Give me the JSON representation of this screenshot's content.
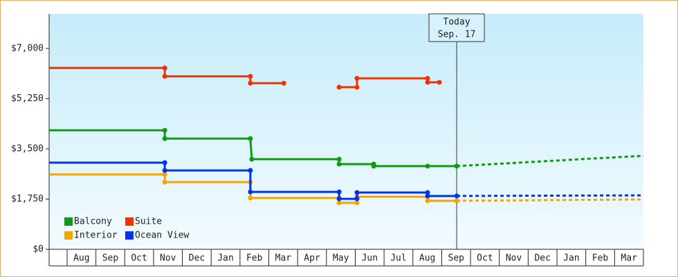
{
  "chart_data": {
    "type": "line",
    "ylim": [
      0,
      8207
    ],
    "yticks": [
      {
        "value": 0,
        "label": "$0"
      },
      {
        "value": 1750,
        "label": "$1,750"
      },
      {
        "value": 3500,
        "label": "$3,500"
      },
      {
        "value": 5250,
        "label": "$5,250"
      },
      {
        "value": 7000,
        "label": "$7,000"
      }
    ],
    "xlim": [
      -0.624,
      20
    ],
    "xticks": [
      0,
      1,
      2,
      3,
      4,
      5,
      6,
      7,
      8,
      9,
      10,
      11,
      12,
      13,
      14,
      15,
      16,
      17,
      18,
      19,
      20
    ],
    "categories": [
      "Aug",
      "Sep",
      "Oct",
      "Nov",
      "Dec",
      "Jan",
      "Feb",
      "Mar",
      "Apr",
      "May",
      "Jun",
      "Jul",
      "Aug",
      "Sep",
      "Oct",
      "Nov",
      "Dec",
      "Jan",
      "Feb",
      "Mar"
    ],
    "today": {
      "x": 13.52,
      "label": "Today",
      "date": "Sep. 17"
    },
    "legend": "bottom-left",
    "series": [
      {
        "name": "Balcony",
        "color": "#119911",
        "x": [
          -0.62,
          3.39,
          3.39,
          6.36,
          6.41,
          9.44,
          9.44,
          10.64,
          10.64,
          12.51,
          13.52
        ],
        "values": [
          4150,
          4150,
          3860,
          3860,
          3140,
          3140,
          2970,
          2970,
          2900,
          2900,
          2900
        ],
        "forecast": {
          "x": [
            13.52,
            20
          ],
          "values": [
            2900,
            3260
          ]
        }
      },
      {
        "name": "Suite",
        "color": "#ee3300",
        "x": [
          -0.62,
          3.39,
          3.39,
          6.36,
          6.36,
          7.52,
          8.5,
          9.44,
          10.06,
          10.06,
          12.51,
          12.51,
          12.92
        ],
        "values": [
          6320,
          6320,
          6030,
          6030,
          5790,
          5790,
          null,
          5650,
          5650,
          5960,
          5960,
          5820,
          5820
        ]
      },
      {
        "name": "Interior",
        "color": "#f5a300",
        "x": [
          -0.62,
          3.39,
          3.39,
          6.36,
          6.36,
          9.44,
          9.44,
          10.06,
          10.06,
          12.51,
          12.51,
          13.52
        ],
        "values": [
          2610,
          2610,
          2340,
          2340,
          1790,
          1790,
          1620,
          1620,
          1830,
          1830,
          1690,
          1690
        ],
        "forecast": {
          "x": [
            13.52,
            20
          ],
          "values": [
            1690,
            1740
          ]
        }
      },
      {
        "name": "Ocean View",
        "color": "#0033ee",
        "x": [
          -0.62,
          3.39,
          3.39,
          6.36,
          6.36,
          9.44,
          9.44,
          10.06,
          10.06,
          12.51,
          12.51,
          13.52
        ],
        "values": [
          3020,
          3020,
          2750,
          2750,
          2000,
          2000,
          1760,
          1760,
          1980,
          1980,
          1860,
          1860
        ],
        "forecast": {
          "x": [
            13.52,
            20
          ],
          "values": [
            1860,
            1880
          ]
        }
      }
    ]
  }
}
